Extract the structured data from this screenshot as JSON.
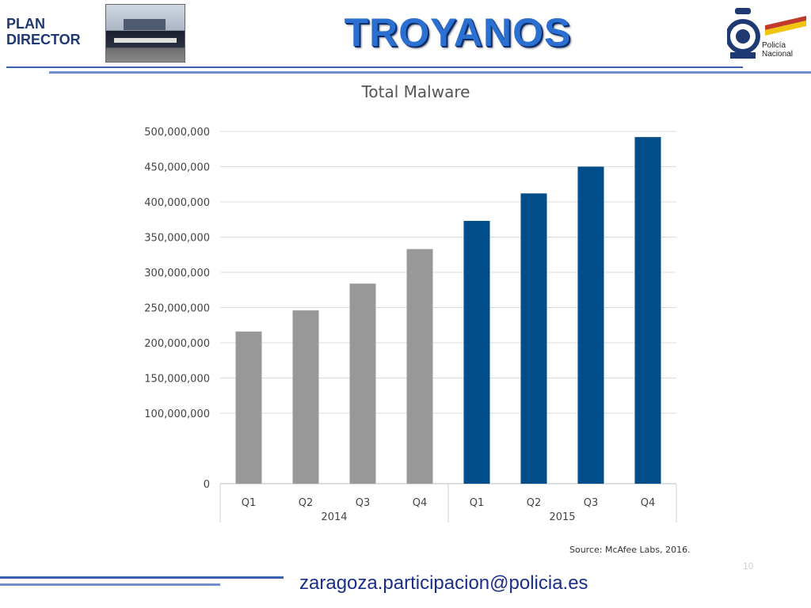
{
  "header": {
    "brand_line1": "PLAN",
    "brand_line2": "DIRECTOR",
    "title": "TROYANOS",
    "logo_line1": "Policía",
    "logo_line2": "Nacional"
  },
  "footer": {
    "email": "zaragoza.participacion@policia.es",
    "page_number": "10",
    "source": "Source: McAfee Labs, 2016."
  },
  "colors": {
    "bar_2014": "#989898",
    "bar_2015": "#004d8a",
    "grid": "#dcdcdc",
    "title_blue": "#2b6fd1"
  },
  "chart_data": {
    "type": "bar",
    "title": "Total Malware",
    "categories": [
      "Q1",
      "Q2",
      "Q3",
      "Q4",
      "Q1",
      "Q2",
      "Q3",
      "Q4"
    ],
    "groups": [
      {
        "label": "2014",
        "start": 0,
        "end": 3
      },
      {
        "label": "2015",
        "start": 4,
        "end": 7
      }
    ],
    "values": [
      216000000,
      246000000,
      284000000,
      333000000,
      373000000,
      412000000,
      450000000,
      492000000
    ],
    "yticks": [
      "0",
      "100,000,000",
      "150,000,000",
      "200,000,000",
      "250,000,000",
      "300,000,000",
      "350,000,000",
      "400,000,000",
      "450,000,000",
      "500,000,000"
    ],
    "ytick_values": [
      0,
      100000000,
      150000000,
      200000000,
      250000000,
      300000000,
      350000000,
      400000000,
      450000000,
      500000000
    ],
    "ylim": [
      0,
      500000000
    ],
    "grid": true,
    "xlabel": "",
    "ylabel": ""
  }
}
